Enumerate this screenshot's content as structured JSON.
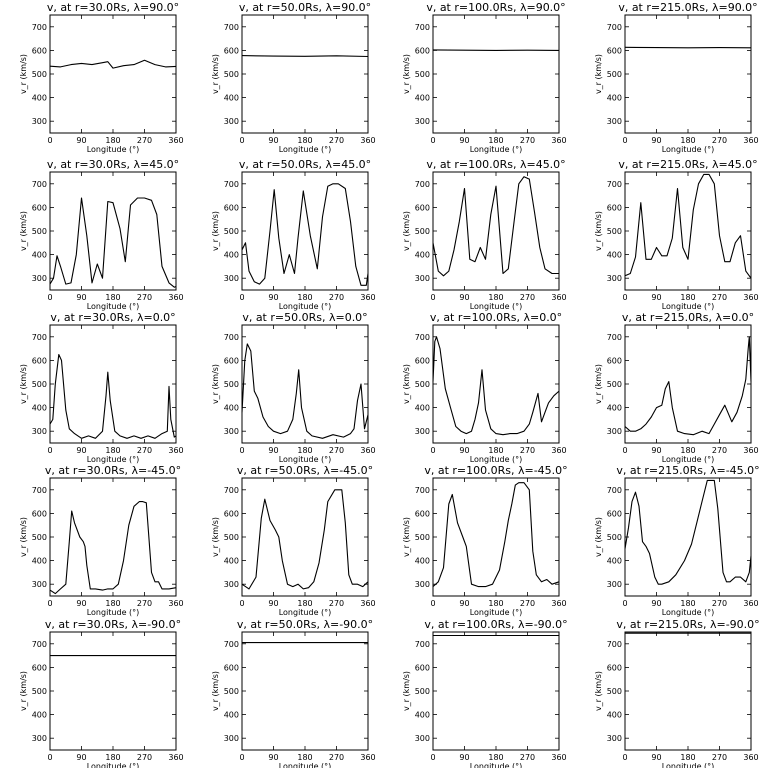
{
  "chart_data": {
    "type": "line",
    "rows": 5,
    "cols": 4,
    "shared": {
      "xlabel": "Longitude (°)",
      "ylabel": "v_r (km/s)",
      "xlim": [
        0,
        360
      ],
      "ylim": [
        250,
        750
      ],
      "xticks": [
        0,
        90,
        180,
        270,
        360
      ],
      "yticks": [
        300,
        400,
        500,
        600,
        700
      ],
      "grid": false,
      "legend": "none"
    },
    "panels": [
      {
        "title": "v, at r=30.0Rs, λ=90.0°",
        "x": [
          0,
          30,
          60,
          90,
          120,
          150,
          165,
          180,
          210,
          240,
          270,
          300,
          330,
          360
        ],
        "y": [
          533,
          530,
          540,
          545,
          540,
          548,
          552,
          525,
          535,
          540,
          558,
          540,
          530,
          532
        ]
      },
      {
        "title": "v, at r=50.0Rs, λ=90.0°",
        "x": [
          0,
          90,
          180,
          270,
          360
        ],
        "y": [
          578,
          576,
          575,
          577,
          574
        ]
      },
      {
        "title": "v, at r=100.0Rs, λ=90.0°",
        "x": [
          0,
          90,
          180,
          270,
          360
        ],
        "y": [
          602,
          601,
          600,
          601,
          600
        ]
      },
      {
        "title": "v, at r=215.0Rs, λ=90.0°",
        "x": [
          0,
          90,
          180,
          270,
          360
        ],
        "y": [
          613,
          612,
          611,
          612,
          611
        ]
      },
      {
        "title": "v, at r=30.0Rs, λ=45.0°",
        "x": [
          0,
          10,
          20,
          30,
          45,
          60,
          75,
          90,
          105,
          120,
          135,
          150,
          165,
          180,
          200,
          215,
          230,
          250,
          270,
          290,
          305,
          320,
          340,
          355,
          360
        ],
        "y": [
          275,
          300,
          395,
          350,
          275,
          280,
          400,
          640,
          480,
          280,
          360,
          300,
          625,
          620,
          510,
          370,
          610,
          640,
          640,
          630,
          570,
          350,
          280,
          262,
          265
        ]
      },
      {
        "title": "v, at r=50.0Rs, λ=45.0°",
        "x": [
          0,
          10,
          20,
          35,
          50,
          65,
          80,
          92,
          105,
          120,
          135,
          150,
          160,
          175,
          195,
          215,
          230,
          245,
          260,
          275,
          295,
          310,
          325,
          340,
          355,
          360
        ],
        "y": [
          420,
          450,
          330,
          285,
          275,
          300,
          500,
          675,
          470,
          320,
          400,
          320,
          470,
          670,
          480,
          340,
          560,
          690,
          700,
          700,
          680,
          540,
          350,
          270,
          270,
          320
        ]
      },
      {
        "title": "v, at r=100.0Rs, λ=45.0°",
        "x": [
          0,
          15,
          30,
          45,
          60,
          75,
          90,
          105,
          120,
          135,
          150,
          165,
          180,
          200,
          215,
          230,
          245,
          260,
          275,
          290,
          305,
          320,
          340,
          360
        ],
        "y": [
          450,
          330,
          310,
          330,
          420,
          540,
          680,
          380,
          370,
          430,
          380,
          570,
          690,
          320,
          340,
          520,
          700,
          730,
          720,
          580,
          430,
          340,
          320,
          320
        ]
      },
      {
        "title": "v, at r=215.0Rs, λ=45.0°",
        "x": [
          0,
          15,
          30,
          45,
          60,
          75,
          90,
          105,
          120,
          135,
          150,
          165,
          180,
          195,
          210,
          225,
          240,
          255,
          270,
          285,
          300,
          315,
          330,
          345,
          360
        ],
        "y": [
          310,
          320,
          390,
          620,
          380,
          380,
          430,
          395,
          395,
          470,
          680,
          430,
          380,
          590,
          700,
          740,
          740,
          700,
          480,
          370,
          370,
          450,
          480,
          330,
          300
        ]
      },
      {
        "title": "v, at r=30.0Rs, λ=0.0°",
        "x": [
          0,
          8,
          15,
          25,
          33,
          45,
          55,
          70,
          90,
          110,
          130,
          150,
          160,
          165,
          172,
          185,
          200,
          220,
          240,
          260,
          280,
          300,
          320,
          335,
          340,
          345,
          355,
          360
        ],
        "y": [
          330,
          350,
          500,
          625,
          600,
          390,
          310,
          290,
          270,
          280,
          270,
          300,
          450,
          550,
          430,
          300,
          280,
          270,
          280,
          270,
          280,
          270,
          290,
          300,
          490,
          350,
          275,
          280
        ]
      },
      {
        "title": "v, at r=50.0Rs, λ=0.0°",
        "x": [
          0,
          8,
          15,
          25,
          35,
          45,
          60,
          75,
          90,
          110,
          130,
          145,
          155,
          162,
          170,
          185,
          200,
          230,
          260,
          290,
          310,
          320,
          330,
          340,
          350,
          360
        ],
        "y": [
          380,
          600,
          670,
          640,
          470,
          440,
          360,
          320,
          300,
          290,
          300,
          350,
          460,
          560,
          400,
          300,
          280,
          270,
          285,
          275,
          290,
          310,
          430,
          500,
          310,
          370
        ]
      },
      {
        "title": "v, at r=100.0Rs, λ=0.0°",
        "x": [
          0,
          5,
          10,
          20,
          35,
          50,
          65,
          80,
          95,
          110,
          120,
          130,
          140,
          150,
          165,
          180,
          200,
          220,
          240,
          260,
          275,
          285,
          300,
          310,
          320,
          330,
          345,
          360
        ],
        "y": [
          510,
          680,
          700,
          650,
          480,
          400,
          320,
          300,
          290,
          300,
          350,
          420,
          560,
          390,
          310,
          290,
          285,
          290,
          290,
          300,
          330,
          380,
          460,
          340,
          380,
          420,
          450,
          470
        ]
      },
      {
        "title": "v, at r=215.0Rs, λ=0.0°",
        "x": [
          0,
          15,
          30,
          45,
          60,
          75,
          90,
          105,
          115,
          125,
          135,
          150,
          170,
          195,
          220,
          240,
          255,
          270,
          285,
          305,
          320,
          335,
          345,
          352,
          355,
          360
        ],
        "y": [
          320,
          300,
          300,
          310,
          330,
          360,
          400,
          410,
          480,
          510,
          400,
          300,
          290,
          285,
          300,
          290,
          330,
          370,
          410,
          340,
          380,
          450,
          520,
          650,
          700,
          510
        ]
      },
      {
        "title": "v, at r=30.0Rs, λ=-45.0°",
        "x": [
          0,
          15,
          30,
          45,
          55,
          62,
          70,
          85,
          95,
          100,
          105,
          115,
          130,
          150,
          165,
          180,
          195,
          210,
          225,
          240,
          255,
          265,
          275,
          290,
          300,
          310,
          320,
          340,
          360
        ],
        "y": [
          275,
          260,
          280,
          300,
          480,
          610,
          560,
          500,
          480,
          460,
          380,
          280,
          280,
          275,
          280,
          280,
          300,
          400,
          550,
          630,
          650,
          650,
          645,
          350,
          310,
          310,
          280,
          280,
          285
        ]
      },
      {
        "title": "v, at r=50.0Rs, λ=-45.0°",
        "x": [
          0,
          20,
          40,
          55,
          65,
          80,
          95,
          105,
          115,
          130,
          145,
          160,
          175,
          190,
          205,
          220,
          235,
          245,
          265,
          285,
          295,
          305,
          315,
          330,
          345,
          360
        ],
        "y": [
          300,
          280,
          330,
          580,
          660,
          570,
          530,
          500,
          400,
          300,
          290,
          300,
          280,
          285,
          310,
          390,
          530,
          650,
          700,
          700,
          560,
          340,
          300,
          300,
          290,
          310
        ]
      },
      {
        "title": "v, at r=100.0Rs, λ=-45.0°",
        "x": [
          0,
          15,
          30,
          45,
          55,
          70,
          85,
          95,
          110,
          130,
          150,
          170,
          190,
          205,
          215,
          225,
          235,
          245,
          260,
          275,
          285,
          295,
          310,
          325,
          340,
          360
        ],
        "y": [
          290,
          310,
          370,
          640,
          680,
          560,
          500,
          460,
          300,
          290,
          290,
          300,
          360,
          480,
          570,
          640,
          720,
          730,
          730,
          700,
          440,
          340,
          310,
          320,
          300,
          310
        ]
      },
      {
        "title": "v, at r=215.0Rs, λ=-45.0°",
        "x": [
          0,
          10,
          20,
          30,
          40,
          50,
          60,
          70,
          85,
          95,
          105,
          125,
          145,
          170,
          190,
          205,
          220,
          235,
          245,
          255,
          265,
          280,
          290,
          300,
          315,
          330,
          345,
          355,
          360
        ],
        "y": [
          450,
          540,
          650,
          690,
          630,
          480,
          460,
          430,
          330,
          300,
          300,
          310,
          340,
          400,
          470,
          560,
          650,
          740,
          740,
          740,
          620,
          350,
          310,
          310,
          330,
          330,
          310,
          350,
          420
        ]
      },
      {
        "title": "v, at r=30.0Rs, λ=-90.0°",
        "x": [
          0,
          360
        ],
        "y": [
          650,
          650
        ]
      },
      {
        "title": "v, at r=50.0Rs, λ=-90.0°",
        "x": [
          0,
          360
        ],
        "y": [
          705,
          705
        ]
      },
      {
        "title": "v, at r=100.0Rs, λ=-90.0°",
        "x": [
          0,
          360
        ],
        "y": [
          735,
          735
        ]
      },
      {
        "title": "v, at r=215.0Rs, λ=-90.0°",
        "x": [
          0,
          360
        ],
        "y": [
          745,
          745
        ]
      }
    ]
  }
}
